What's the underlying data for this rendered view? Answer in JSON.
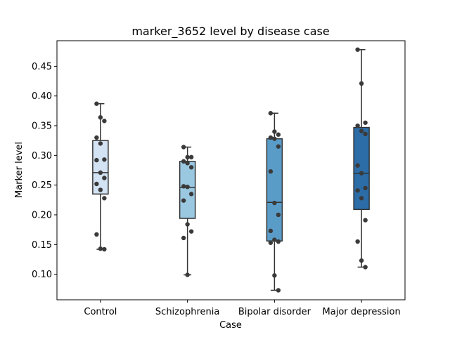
{
  "chart_data": {
    "type": "box",
    "title": "marker_3652 level by disease case",
    "xlabel": "Case",
    "ylabel": "Marker level",
    "ylim": [
      0.057,
      0.493
    ],
    "yticks": [
      "0.10",
      "0.15",
      "0.20",
      "0.25",
      "0.30",
      "0.35",
      "0.40",
      "0.45"
    ],
    "grid": false,
    "categories": [
      "Control",
      "Schizophrenia",
      "Bipolar disorder",
      "Major depression"
    ],
    "box_colors": [
      "#d3e3f3",
      "#9ac8e0",
      "#5a9cc8",
      "#2c6da8"
    ],
    "boxes": [
      {
        "whisker_low": 0.142,
        "q1": 0.235,
        "median": 0.271,
        "q3": 0.325,
        "whisker_high": 0.387
      },
      {
        "whisker_low": 0.099,
        "q1": 0.194,
        "median": 0.246,
        "q3": 0.29,
        "whisker_high": 0.314
      },
      {
        "whisker_low": 0.073,
        "q1": 0.156,
        "median": 0.221,
        "q3": 0.328,
        "whisker_high": 0.371
      },
      {
        "whisker_low": 0.112,
        "q1": 0.209,
        "median": 0.27,
        "q3": 0.347,
        "whisker_high": 0.478
      }
    ],
    "points": [
      [
        0.387,
        0.364,
        0.358,
        0.33,
        0.32,
        0.293,
        0.292,
        0.271,
        0.262,
        0.252,
        0.242,
        0.228,
        0.167,
        0.143,
        0.142
      ],
      [
        0.314,
        0.297,
        0.297,
        0.29,
        0.287,
        0.28,
        0.248,
        0.247,
        0.235,
        0.224,
        0.184,
        0.172,
        0.161,
        0.099
      ],
      [
        0.371,
        0.34,
        0.335,
        0.33,
        0.328,
        0.315,
        0.273,
        0.22,
        0.2,
        0.173,
        0.158,
        0.155,
        0.153,
        0.098,
        0.073
      ],
      [
        0.478,
        0.421,
        0.355,
        0.35,
        0.341,
        0.336,
        0.283,
        0.27,
        0.245,
        0.241,
        0.228,
        0.191,
        0.155,
        0.123,
        0.112
      ]
    ],
    "colors": {
      "box_edge": "#333333",
      "point": "#3a3a3a"
    }
  }
}
